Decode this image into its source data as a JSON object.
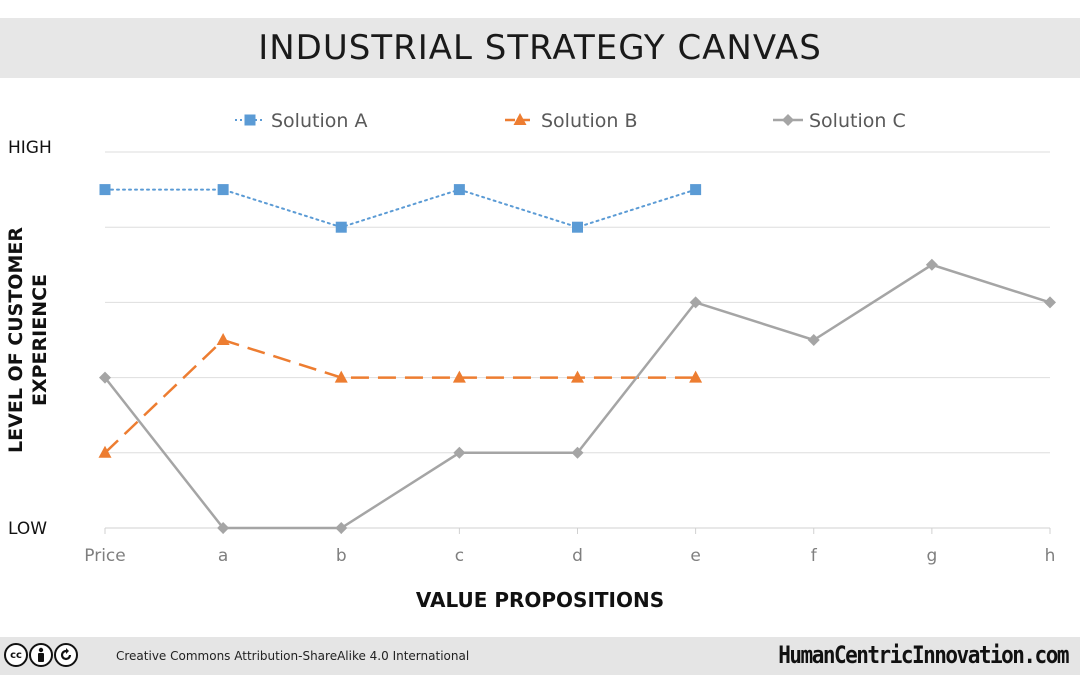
{
  "title": "INDUSTRIAL STRATEGY CANVAS",
  "footer": {
    "license": "Creative Commons Attribution-ShareAlike 4.0 International",
    "site": "HumanCentricInnovation.com",
    "icons": [
      "cc-icon",
      "by-icon",
      "sa-icon"
    ]
  },
  "chart_data": {
    "type": "line",
    "title": "INDUSTRIAL STRATEGY CANVAS",
    "xlabel": "VALUE PROPOSITIONS",
    "ylabel": "LEVEL OF CUSTOMER EXPERIENCE",
    "categories": [
      "Price",
      "a",
      "b",
      "c",
      "d",
      "e",
      "f",
      "g",
      "h"
    ],
    "y_tick_labels": {
      "high": "HIGH",
      "low": "LOW"
    },
    "ylim": [
      0,
      5
    ],
    "grid": true,
    "legend": "top",
    "series": [
      {
        "name": "Solution A",
        "color": "#5b9bd5",
        "marker": "square",
        "line_style": "dotted",
        "values": [
          4.5,
          4.5,
          4,
          4.5,
          4,
          4.5,
          null,
          null,
          null
        ]
      },
      {
        "name": "Solution B",
        "color": "#ed7d31",
        "marker": "triangle",
        "line_style": "dashed",
        "values": [
          1,
          2.5,
          2,
          2,
          2,
          2,
          null,
          null,
          null
        ]
      },
      {
        "name": "Solution C",
        "color": "#a5a5a5",
        "marker": "diamond",
        "line_style": "solid",
        "values": [
          2,
          0,
          0,
          1,
          1,
          3,
          2.5,
          3.5,
          3
        ]
      }
    ]
  }
}
